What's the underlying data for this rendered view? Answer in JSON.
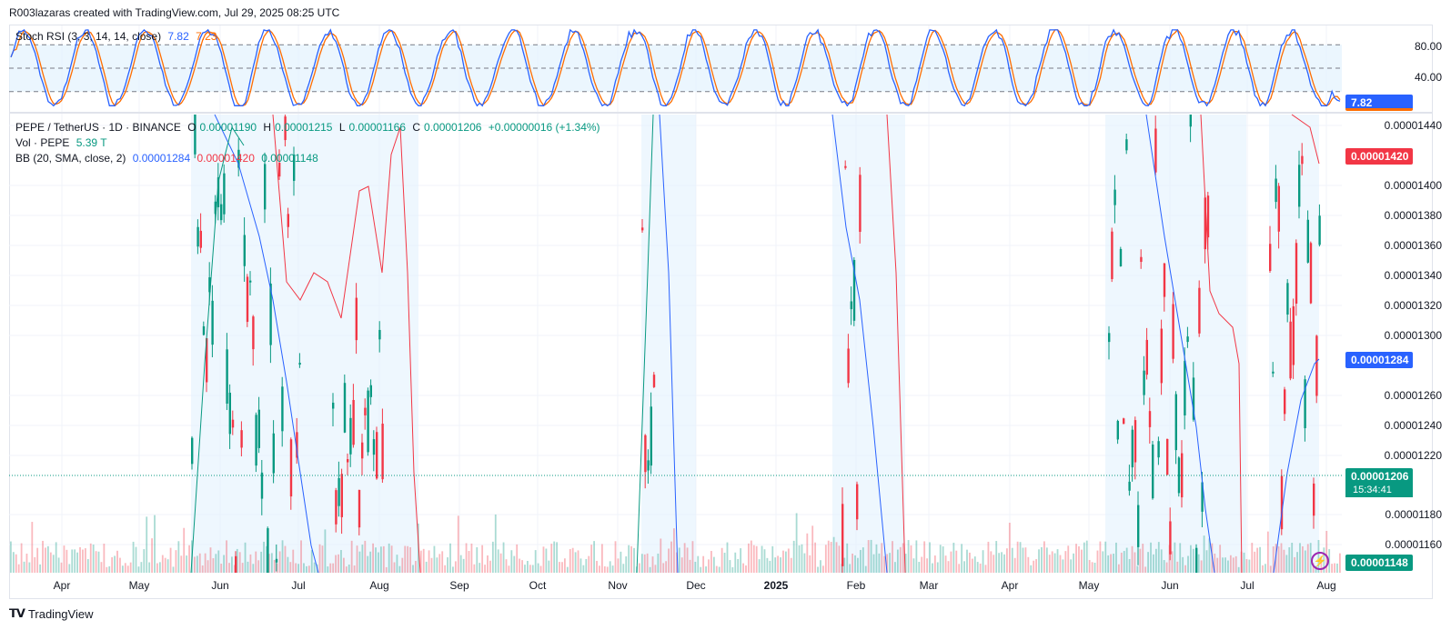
{
  "header": {
    "text": "R003lazaras created with TradingView.com, Jul 29, 2025 08:25 UTC"
  },
  "stoch": {
    "label": "Stoch RSI (3, 3, 14, 14, close)",
    "k_value": "7.82",
    "d_value": "7.23",
    "levels": [
      "80.00",
      "40.00"
    ],
    "current_tag": "7.82",
    "colors": {
      "k": "#2962ff",
      "d": "#ff6d00",
      "band": "#e3f2fd"
    }
  },
  "main": {
    "symbol": "PEPE / TetherUS · 1D · BINANCE",
    "ohlc": {
      "o_label": "O",
      "o": "0.00001190",
      "h_label": "H",
      "h": "0.00001215",
      "l_label": "L",
      "l": "0.00001166",
      "c_label": "C",
      "c": "0.00001206",
      "change": "+0.00000016 (+1.34%)"
    },
    "vol_label": "Vol · PEPE",
    "vol_value": "5.39 T",
    "bb_label": "BB (20, SMA, close, 2)",
    "bb_basis": "0.00001284",
    "bb_upper": "0.00001420",
    "bb_lower": "0.00001148",
    "price_levels": [
      "0.00001440",
      "0.00001400",
      "0.00001380",
      "0.00001360",
      "0.00001340",
      "0.00001320",
      "0.00001300",
      "0.00001260",
      "0.00001240",
      "0.00001220",
      "0.00001180",
      "0.00001160"
    ],
    "tags": {
      "upper": "0.00001420",
      "basis": "0.00001284",
      "last": "0.00001206",
      "countdown": "15:34:41",
      "lower": "0.00001148"
    },
    "colors": {
      "up": "#089981",
      "down": "#f23645",
      "basis": "#2962ff",
      "upper": "#f23645",
      "lower": "#089981",
      "band": "#e3f2fd"
    }
  },
  "x_axis": [
    "Apr",
    "May",
    "Jun",
    "Jul",
    "Aug",
    "Sep",
    "Oct",
    "Nov",
    "Dec",
    "2025",
    "Feb",
    "Mar",
    "Apr",
    "May",
    "Jun",
    "Jul",
    "Aug"
  ],
  "footer": {
    "logo": "TradingView"
  },
  "chart_data": {
    "type": "candlestick",
    "title": "PEPE / TetherUS · 1D · BINANCE",
    "y_range_visible": [
      1.14e-05,
      1.45e-05
    ],
    "stoch_range": [
      0,
      100
    ],
    "stoch_levels": [
      80,
      20
    ],
    "stoch_k_last": 7.82,
    "stoch_d_last": 7.23,
    "last_ohlc": {
      "open": 1.19e-05,
      "high": 1.215e-05,
      "low": 1.166e-05,
      "close": 1.206e-05
    },
    "bollinger_last": {
      "basis": 1.284e-05,
      "upper": 1.42e-05,
      "lower": 1.148e-05
    },
    "volume_last": "5.39T"
  }
}
